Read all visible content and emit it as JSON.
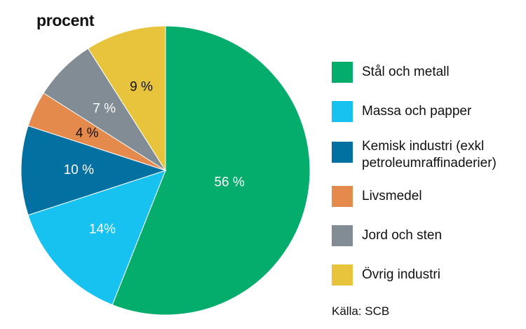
{
  "chart_data": {
    "type": "pie",
    "unit_label": "procent",
    "slices": [
      {
        "label": "Stål och metall",
        "value": 56,
        "value_label": "56 %",
        "color": "#05AD6C",
        "label_color": "#ffffff"
      },
      {
        "label": "Massa och papper",
        "value": 14,
        "value_label": "14%",
        "color": "#17C2F1",
        "label_color": "#ffffff"
      },
      {
        "label": "Kemisk industri (exkl\npetroleumraffinaderier)",
        "value": 10,
        "value_label": "10 %",
        "color": "#0370A2",
        "label_color": "#ffffff"
      },
      {
        "label": "Livsmedel",
        "value": 4,
        "value_label": "4 %",
        "color": "#E48A4C",
        "label_color": "#111111"
      },
      {
        "label": "Jord och sten",
        "value": 7,
        "value_label": "7 %",
        "color": "#818C95",
        "label_color": "#ffffff"
      },
      {
        "label": "Övrig industri",
        "value": 9,
        "value_label": "9 %",
        "color": "#E7C43C",
        "label_color": "#111111"
      }
    ],
    "legend_position": "right",
    "source": "Källa: SCB"
  }
}
